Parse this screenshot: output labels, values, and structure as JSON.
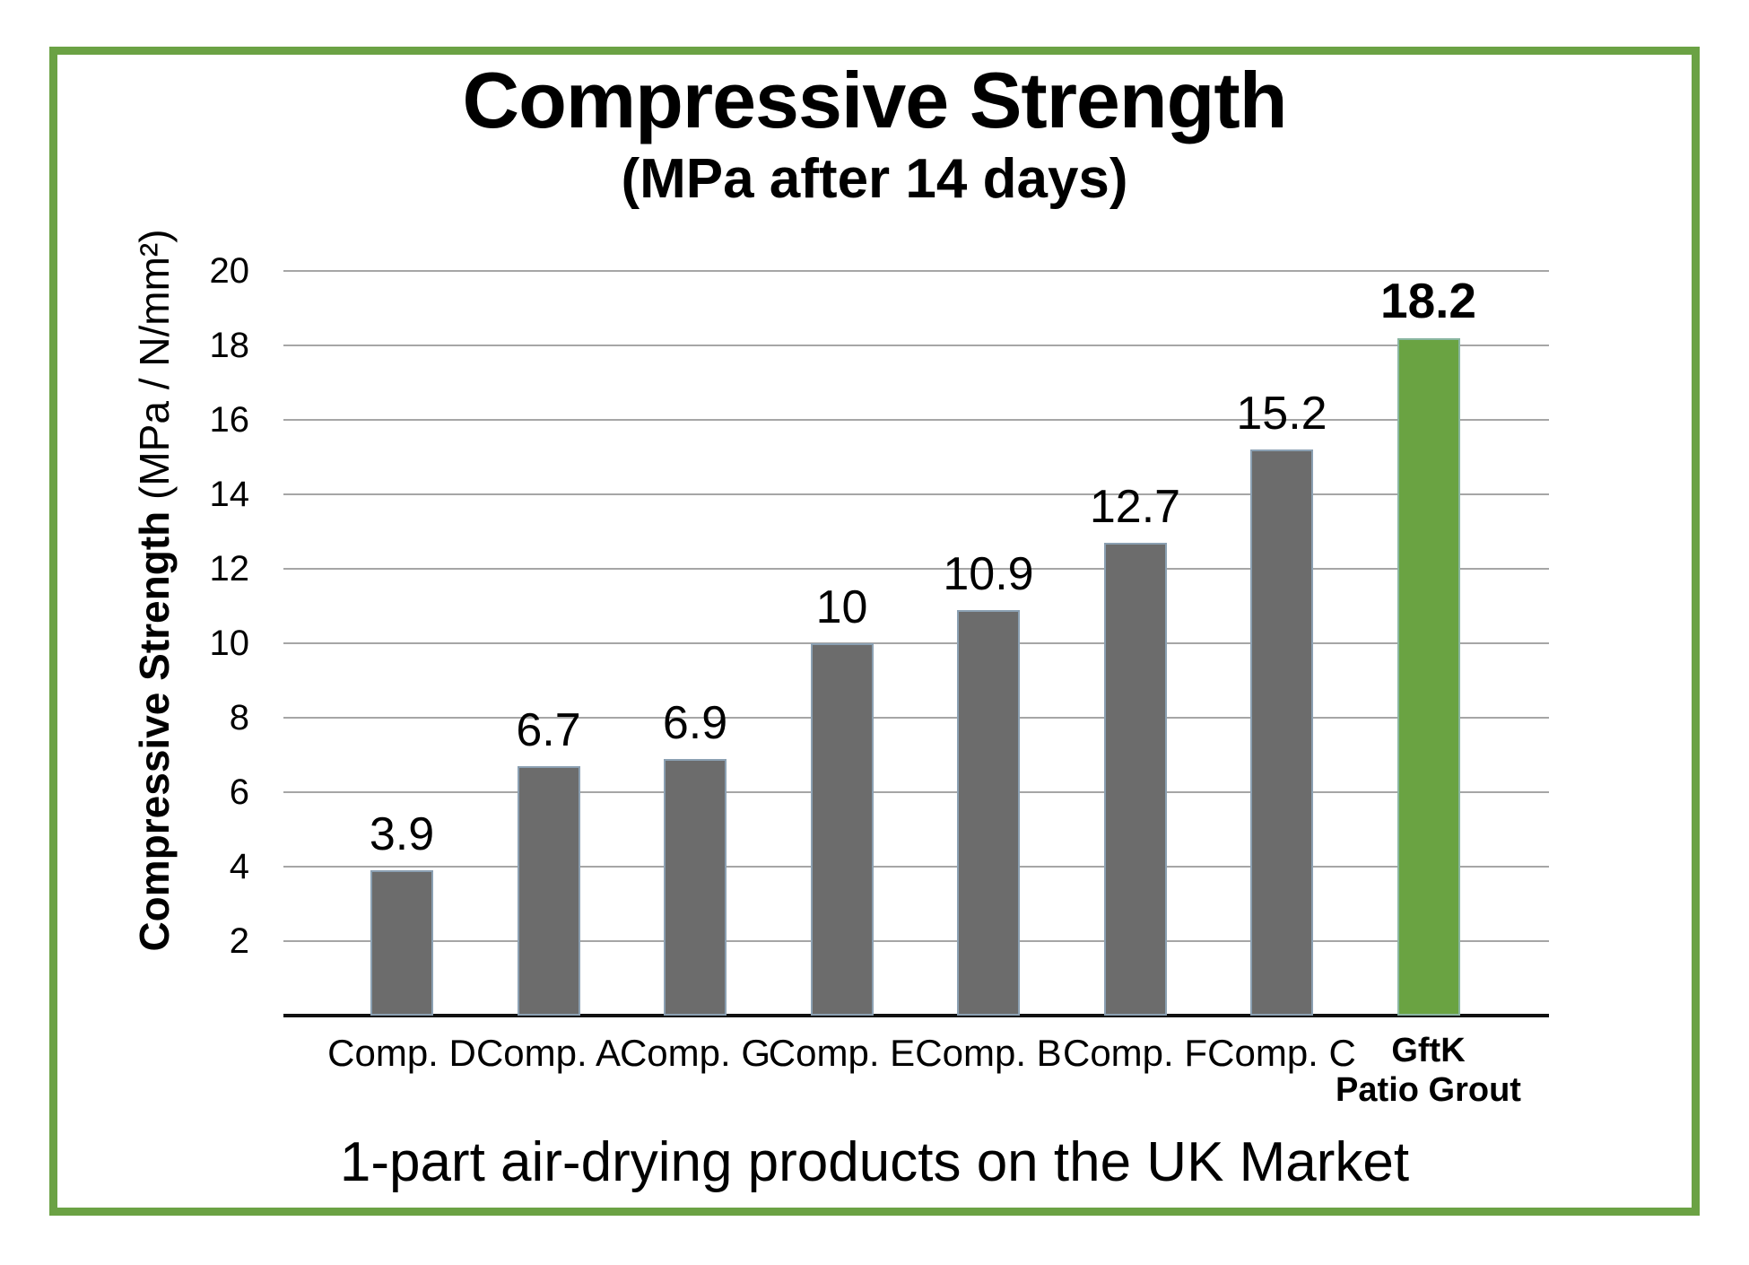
{
  "title": {
    "main": "Compressive Strength",
    "sub": "(MPa after 14 days)"
  },
  "y_axis": {
    "label_bold": "Compressive Strength",
    "label_regular": " (MPa / N/mm²)",
    "ticks": [
      20,
      18,
      16,
      14,
      12,
      10,
      8,
      6,
      4,
      2
    ]
  },
  "caption": "1-part air-drying products on the UK Market",
  "colors": {
    "frame_green": "#6BA244",
    "bar_gray": "#6C6C6C",
    "bar_green": "#6AA342",
    "gridline": "#A6A6A6",
    "bar_edge": "rgba(160,195,225,0.6)",
    "axis": "#111111"
  },
  "chart_data": {
    "type": "bar",
    "title": "Compressive Strength (MPa after 14 days)",
    "categories": [
      "Comp. D",
      "Comp. A",
      "Comp. G",
      "Comp. E",
      "Comp. B",
      "Comp. F",
      "Comp. C",
      "GftK Patio Grout"
    ],
    "values": [
      3.9,
      6.7,
      6.9,
      10,
      10.9,
      12.7,
      15.2,
      18.2
    ],
    "value_labels": [
      "3.9",
      "6.7",
      "6.9",
      "10",
      "10.9",
      "12.7",
      "15.2",
      "18.2"
    ],
    "highlight_index": 7,
    "highlight_label_lines": [
      "GftK",
      "Patio Grout"
    ],
    "bar_color_default": "#6C6C6C",
    "bar_color_highlight": "#6AA342",
    "xlabel": "1-part air-drying products on the UK Market",
    "ylabel": "Compressive Strength (MPa / N/mm²)",
    "ylim": [
      0,
      20
    ],
    "ytick_step": 2,
    "grid": true,
    "legend": false
  }
}
